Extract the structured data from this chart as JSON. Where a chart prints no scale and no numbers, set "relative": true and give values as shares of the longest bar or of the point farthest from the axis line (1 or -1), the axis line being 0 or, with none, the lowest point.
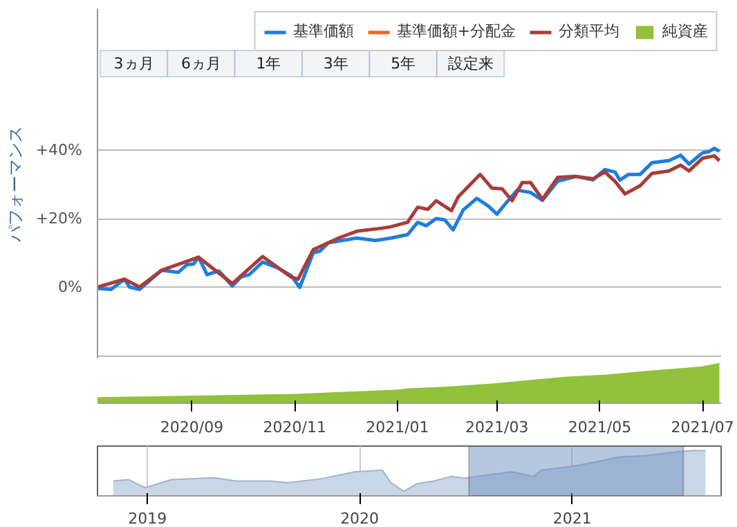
{
  "chart_data": [
    {
      "type": "line",
      "ylabel": "パフォーマンス",
      "xlim": [
        "2020-07-07",
        "2021-07-12"
      ],
      "ylim": [
        -21,
        81.2
      ],
      "tick_labels": "y",
      "yticks": [
        {
          "value": -20,
          "label": null
        },
        {
          "value": 0,
          "label": "0%"
        },
        {
          "value": 20,
          "label": "+20%"
        },
        {
          "value": 40,
          "label": "+40%"
        }
      ],
      "grid": "y",
      "legend": "top right",
      "line_style": "solid",
      "annotations": [
        "3ヵ月",
        "6ヵ月",
        "1年",
        "3年",
        "5年",
        "設定来"
      ],
      "series": [
        {
          "name": "基準価額",
          "color": "#1f7de0",
          "x": [
            "2020-07-07",
            "2020-07-15",
            "2020-07-23",
            "2020-07-26",
            "2020-08-01",
            "2020-08-14",
            "2020-08-24",
            "2020-08-29",
            "2020-09-02",
            "2020-09-05",
            "2020-09-10",
            "2020-09-17",
            "2020-09-25",
            "2020-09-30",
            "2020-10-05",
            "2020-10-13",
            "2020-10-22",
            "2020-10-30",
            "2020-11-04",
            "2020-11-08",
            "2020-11-12",
            "2020-11-16",
            "2020-11-21",
            "2020-11-29",
            "2020-12-08",
            "2020-12-19",
            "2020-12-28",
            "2021-01-07",
            "2021-01-13",
            "2021-01-18",
            "2021-01-24",
            "2021-01-29",
            "2021-02-03",
            "2021-02-09",
            "2021-02-17",
            "2021-02-24",
            "2021-03-01",
            "2021-03-06",
            "2021-03-13",
            "2021-03-21",
            "2021-03-28",
            "2021-04-06",
            "2021-04-17",
            "2021-04-27",
            "2021-05-04",
            "2021-05-10",
            "2021-05-13",
            "2021-05-18",
            "2021-05-25",
            "2021-06-01",
            "2021-06-11",
            "2021-06-18",
            "2021-06-23",
            "2021-07-01",
            "2021-07-05",
            "2021-07-08",
            "2021-07-11"
          ],
          "values": [
            -0.4,
            -0.7,
            2.3,
            0,
            -0.7,
            4.9,
            4.3,
            6.5,
            6.7,
            8.7,
            3.6,
            4.7,
            0.3,
            2.9,
            3.6,
            7.3,
            5.6,
            3.3,
            -0.1,
            4.9,
            10,
            10.5,
            12.9,
            13.6,
            14.3,
            13.6,
            14.3,
            15.3,
            18.9,
            17.9,
            20,
            19.6,
            16.7,
            22.5,
            25.9,
            23.6,
            21.3,
            24.3,
            28.3,
            27.6,
            25.3,
            30.9,
            32.3,
            31.3,
            34.3,
            33.6,
            31.2,
            32.9,
            32.9,
            36.3,
            36.9,
            38.5,
            35.9,
            39.2,
            39.6,
            40.5,
            39.6
          ]
        },
        {
          "name": "基準価額+分配金",
          "color": "#f26522"
        },
        {
          "name": "分類平均",
          "color": "#a83c3c",
          "x": [
            "2020-07-07",
            "2020-07-23",
            "2020-08-01",
            "2020-08-14",
            "2020-09-05",
            "2020-09-25",
            "2020-10-13",
            "2020-10-30",
            "2020-11-03",
            "2020-11-12",
            "2020-11-27",
            "2020-12-08",
            "2020-12-23",
            "2020-12-28",
            "2021-01-07",
            "2021-01-13",
            "2021-01-19",
            "2021-01-24",
            "2021-02-02",
            "2021-02-06",
            "2021-02-19",
            "2021-02-26",
            "2021-03-04",
            "2021-03-10",
            "2021-03-16",
            "2021-03-21",
            "2021-03-28",
            "2021-04-06",
            "2021-04-17",
            "2021-04-27",
            "2021-05-04",
            "2021-05-10",
            "2021-05-16",
            "2021-05-25",
            "2021-06-01",
            "2021-06-11",
            "2021-06-18",
            "2021-06-23",
            "2021-07-01",
            "2021-07-08",
            "2021-07-11"
          ],
          "values": [
            0,
            2.3,
            0,
            4.9,
            8.7,
            1,
            8.9,
            2.9,
            2.3,
            10.9,
            14.3,
            16.3,
            17.2,
            17.6,
            18.9,
            23.3,
            22.7,
            25.2,
            22.3,
            26.3,
            32.9,
            28.9,
            28.7,
            25.2,
            30.5,
            30.5,
            25.6,
            32,
            32.3,
            31.6,
            33.6,
            30.9,
            27.2,
            29.6,
            33.2,
            33.9,
            35.6,
            33.9,
            37.6,
            38.3,
            36.9
          ]
        },
        {
          "name": "純資産",
          "color": "#92c13b",
          "type": "area"
        }
      ]
    },
    {
      "type": "area",
      "relative": true,
      "xlim": [
        "2020-07-07",
        "2021-07-12"
      ],
      "tick_labels": "x",
      "xticks": [
        {
          "value": "2020-09-01",
          "label": "2020/09"
        },
        {
          "value": "2020-11-01",
          "label": "2020/11"
        },
        {
          "value": "2021-01-01",
          "label": "2021/01"
        },
        {
          "value": "2021-03-01",
          "label": "2021/03"
        },
        {
          "value": "2021-05-01",
          "label": "2021/05"
        },
        {
          "value": "2021-07-01",
          "label": "2021/07"
        }
      ],
      "series": [
        {
          "color": "#92c13b",
          "x": [
            "2020-07-07",
            "2020-11-02",
            "2021-01-01",
            "2021-01-07",
            "2021-01-29",
            "2021-03-01",
            "2021-03-19",
            "2021-04-12",
            "2021-05-04",
            "2021-06-03",
            "2021-06-30",
            "2021-07-11"
          ],
          "values": [
            0.15,
            0.23,
            0.34,
            0.37,
            0.41,
            0.5,
            0.57,
            0.66,
            0.71,
            0.82,
            0.91,
            1
          ]
        }
      ]
    },
    {
      "type": "area",
      "relative": true,
      "xlim": [
        "2018-10-07",
        "2021-09-14"
      ],
      "grid": "x",
      "legend": false,
      "xticks": [
        {
          "value": "2019-01-01",
          "label": "2019"
        },
        {
          "value": "2020-01-01",
          "label": "2020"
        },
        {
          "value": "2021-01-01",
          "label": "2021"
        }
      ],
      "bands": [
        {
          "axis": "x",
          "from": "2020-07-07",
          "to": "2021-07-11",
          "color": "#6f8fbf"
        }
      ],
      "series": [
        {
          "color": "#c9d6e6",
          "x": [
            "2018-11-03",
            "2018-11-29",
            "2018-12-28",
            "2019-02-11",
            "2019-04-26",
            "2019-06-02",
            "2019-07-31",
            "2019-08-30",
            "2019-10-28",
            "2019-12-23",
            "2020-02-09",
            "2020-02-24",
            "2020-03-17",
            "2020-04-09",
            "2020-05-08",
            "2020-06-07",
            "2020-06-29",
            "2020-07-21",
            "2020-09-19",
            "2020-10-26",
            "2020-11-09",
            "2020-12-31",
            "2021-02-07",
            "2021-03-23",
            "2021-05-07",
            "2021-07-05",
            "2021-07-27",
            "2021-08-18"
          ],
          "values": [
            0.33,
            0.36,
            0.18,
            0.36,
            0.4,
            0.33,
            0.33,
            0.29,
            0.38,
            0.53,
            0.57,
            0.29,
            0.1,
            0.27,
            0.33,
            0.43,
            0.39,
            0.43,
            0.53,
            0.43,
            0.57,
            0.65,
            0.74,
            0.86,
            0.89,
            0.98,
            1,
            1
          ]
        }
      ]
    }
  ]
}
